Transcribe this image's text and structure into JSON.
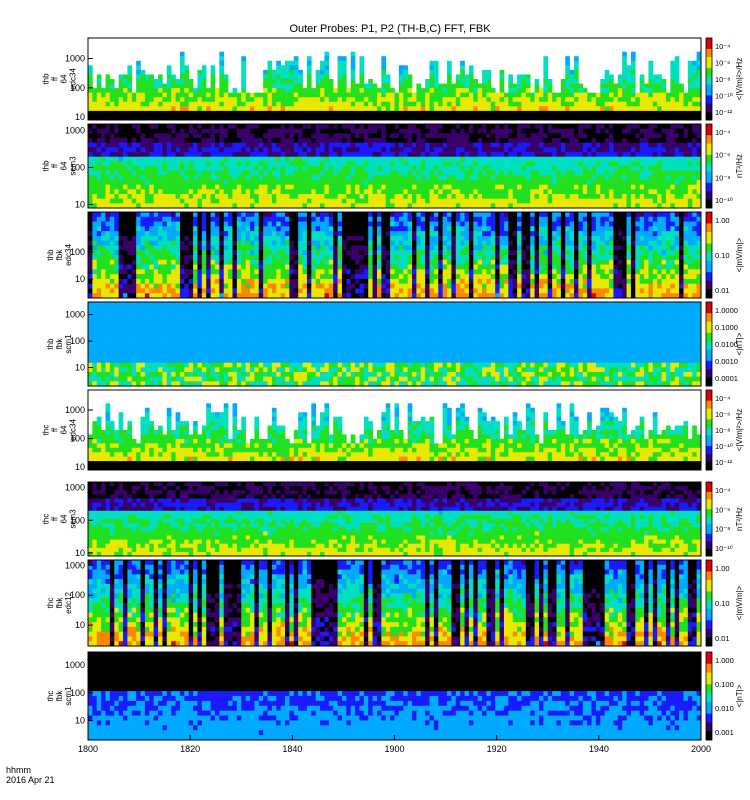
{
  "title": "Outer Probes: P1, P2 (TH-B,C) FFT, FBK",
  "footer": {
    "time_label": "hhmm",
    "date_label": "2016 Apr 21"
  },
  "chart_data": {
    "type": "heatmap",
    "title": "Outer Probes: P1, P2 (TH-B,C) FFT, FBK",
    "x_ticks": [
      "1800",
      "1820",
      "1840",
      "1900",
      "1920",
      "1940",
      "2000"
    ],
    "x_range": [
      "18:00",
      "20:00"
    ],
    "colors": {
      "palette": [
        "#000000",
        "#3a006a",
        "#1a1aff",
        "#00aaff",
        "#00e0c0",
        "#20e020",
        "#e8e800",
        "#ff8800",
        "#dd0000"
      ]
    },
    "panels": [
      {
        "ylabel": [
          "thb",
          "ff",
          "64",
          "edc34"
        ],
        "yticks": [
          "1000",
          "100",
          "10"
        ],
        "ymin": 8,
        "ymax": 5000,
        "log": true,
        "cbar_label": "<|V/m|²>/Hz",
        "cbar_ticks": [
          "10⁻⁴",
          "10⁻⁶",
          "10⁻⁸",
          "10⁻¹⁰",
          "10⁻¹²"
        ],
        "style": "ff_e"
      },
      {
        "ylabel": [
          "thb",
          "ff",
          "64",
          "scm3"
        ],
        "yticks": [
          "1000",
          "100",
          "10"
        ],
        "ymin": 8,
        "ymax": 1500,
        "log": true,
        "cbar_label": "nT²/Hz",
        "cbar_ticks": [
          "10⁻⁴",
          "10⁻⁶",
          "10⁻⁸",
          "10⁻¹⁰"
        ],
        "style": "ff_b"
      },
      {
        "ylabel": [
          "thb",
          "fbk",
          "edc34"
        ],
        "yticks": [
          "100",
          "10"
        ],
        "ymin": 2,
        "ymax": 3000,
        "log": true,
        "cbar_label": "<|mV/m|>",
        "cbar_ticks": [
          "1.00",
          "0.10",
          "0.01"
        ],
        "style": "fbk_e"
      },
      {
        "ylabel": [
          "thb",
          "fbk",
          "scm1"
        ],
        "yticks": [
          "1000",
          "100",
          "10"
        ],
        "ymin": 2,
        "ymax": 3000,
        "log": true,
        "cbar_label": "<|nT|>",
        "cbar_ticks": [
          "1.0000",
          "0.1000",
          "0.0100",
          "0.0010",
          "0.0001"
        ],
        "style": "fbk_b"
      },
      {
        "ylabel": [
          "thc",
          "ff",
          "64",
          "edc34"
        ],
        "yticks": [
          "1000",
          "100",
          "10"
        ],
        "ymin": 8,
        "ymax": 5000,
        "log": true,
        "cbar_label": "<|V/m|²>/Hz",
        "cbar_ticks": [
          "10⁻⁴",
          "10⁻⁶",
          "10⁻⁸",
          "10⁻¹⁰",
          "10⁻¹²"
        ],
        "style": "ff_e"
      },
      {
        "ylabel": [
          "thc",
          "ff",
          "64",
          "scm3"
        ],
        "yticks": [
          "1000",
          "100",
          "10"
        ],
        "ymin": 8,
        "ymax": 1500,
        "log": true,
        "cbar_label": "nT²/Hz",
        "cbar_ticks": [
          "10⁻⁴",
          "10⁻⁶",
          "10⁻⁸",
          "10⁻¹⁰"
        ],
        "style": "ff_b"
      },
      {
        "ylabel": [
          "thc",
          "fbk",
          "edc12"
        ],
        "yticks": [
          "1000",
          "100",
          "10"
        ],
        "ymin": 2,
        "ymax": 1500,
        "log": true,
        "cbar_label": "<|mV/m|>",
        "cbar_ticks": [
          "1.00",
          "0.10",
          "0.01"
        ],
        "style": "fbk_e"
      },
      {
        "ylabel": [
          "thc",
          "fbk",
          "scm1"
        ],
        "yticks": [
          "1000",
          "100",
          "10"
        ],
        "ymin": 2,
        "ymax": 3000,
        "log": true,
        "cbar_label": "<|nT|>",
        "cbar_ticks": [
          "1.000",
          "0.100",
          "0.010",
          "0.001"
        ],
        "style": "fbk_b2"
      }
    ]
  }
}
